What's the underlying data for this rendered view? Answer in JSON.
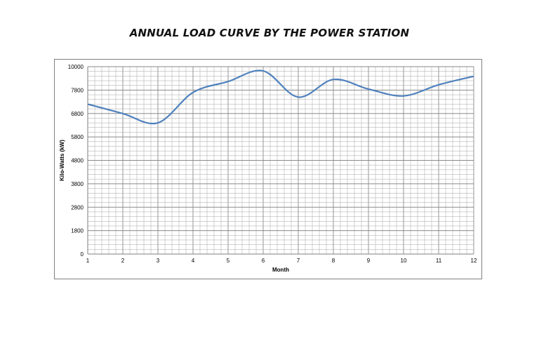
{
  "chart_data": {
    "type": "line",
    "title": "ANNUAL LOAD CURVE BY THE POWER STATION",
    "xlabel": "Month",
    "ylabel": "Kilo-Watts (kW)",
    "x": [
      1,
      2,
      3,
      4,
      5,
      6,
      7,
      8,
      9,
      10,
      11,
      12
    ],
    "x_ticks": [
      "1",
      "2",
      "3",
      "4",
      "5",
      "6",
      "7",
      "8",
      "9",
      "10",
      "11",
      "12"
    ],
    "xlim": [
      1,
      12
    ],
    "y_ticks": [
      0,
      1800,
      2800,
      3800,
      4800,
      5800,
      6800,
      7800,
      10000
    ],
    "y_tick_labels": [
      "0",
      "1800",
      "2800",
      "3800",
      "4800",
      "5800",
      "6800",
      "7800",
      "10000"
    ],
    "ylim": [
      0,
      10000
    ],
    "grid": true,
    "series": [
      {
        "values": [
          7200,
          6800,
          6400,
          7700,
          8600,
          9600,
          7500,
          8800,
          7900,
          7550,
          8300,
          9100
        ]
      }
    ],
    "line_color": "#4f81bd",
    "grid_color": "#a6a6a6"
  }
}
